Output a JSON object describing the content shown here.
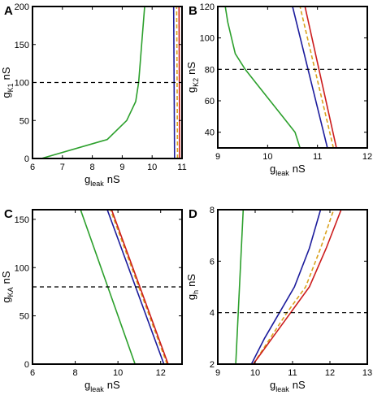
{
  "colors": {
    "green": "#2ca02c",
    "blue": "#1c1c9c",
    "red": "#cc1c1c",
    "orange": "#d9a21c",
    "reference": "#000000"
  },
  "chart_data": [
    {
      "type": "line",
      "panel_label": "A",
      "xlabel_main": "g",
      "xlabel_sub": "leak",
      "xlabel_unit": "nS",
      "ylabel_main": "g",
      "ylabel_sub": "K1",
      "ylabel_unit": "nS",
      "xlim": [
        6,
        11
      ],
      "ylim": [
        0,
        200
      ],
      "xticks": [
        6,
        7,
        8,
        9,
        10,
        11
      ],
      "yticks": [
        0,
        50,
        100,
        150,
        200
      ],
      "reference_y": 100,
      "series": [
        {
          "color": "green",
          "dashed": false,
          "x": [
            6.3,
            8.5,
            9.15,
            9.45,
            9.55,
            9.6,
            9.65,
            9.75
          ],
          "y": [
            0,
            25,
            50,
            75,
            100,
            125,
            150,
            200
          ]
        },
        {
          "color": "blue",
          "dashed": false,
          "x": [
            10.75,
            10.72
          ],
          "y": [
            0,
            200
          ]
        },
        {
          "color": "orange",
          "dashed": true,
          "x": [
            10.85,
            10.82
          ],
          "y": [
            0,
            200
          ]
        },
        {
          "color": "red",
          "dashed": false,
          "x": [
            10.92,
            10.9
          ],
          "y": [
            0,
            200
          ]
        }
      ]
    },
    {
      "type": "line",
      "panel_label": "B",
      "xlabel_main": "g",
      "xlabel_sub": "leak",
      "xlabel_unit": "nS",
      "ylabel_main": "g",
      "ylabel_sub": "K2",
      "ylabel_unit": "nS",
      "xlim": [
        9,
        12
      ],
      "ylim": [
        30,
        120
      ],
      "xticks": [
        9,
        10,
        11,
        12
      ],
      "yticks": [
        40,
        60,
        80,
        100,
        120
      ],
      "reference_y": 80,
      "series": [
        {
          "color": "green",
          "dashed": false,
          "x": [
            10.65,
            10.55,
            10.3,
            10.05,
            9.8,
            9.55,
            9.35,
            9.2,
            9.15
          ],
          "y": [
            30,
            40,
            50,
            60,
            70,
            80,
            90,
            110,
            120
          ]
        },
        {
          "color": "blue",
          "dashed": false,
          "x": [
            11.2,
            10.5
          ],
          "y": [
            30,
            120
          ]
        },
        {
          "color": "orange",
          "dashed": true,
          "x": [
            11.32,
            10.65
          ],
          "y": [
            30,
            120
          ]
        },
        {
          "color": "red",
          "dashed": false,
          "x": [
            11.38,
            10.75
          ],
          "y": [
            30,
            120
          ]
        }
      ]
    },
    {
      "type": "line",
      "panel_label": "C",
      "xlabel_main": "g",
      "xlabel_sub": "leak",
      "xlabel_unit": "nS",
      "ylabel_main": "g",
      "ylabel_sub": "KA",
      "ylabel_unit": "nS",
      "xlim": [
        6,
        13
      ],
      "ylim": [
        0,
        160
      ],
      "xticks": [
        6,
        8,
        10,
        12
      ],
      "yticks": [
        0,
        50,
        100,
        150
      ],
      "reference_y": 80,
      "series": [
        {
          "color": "green",
          "dashed": false,
          "x": [
            10.8,
            8.25
          ],
          "y": [
            0,
            160
          ]
        },
        {
          "color": "blue",
          "dashed": false,
          "x": [
            12.15,
            9.5
          ],
          "y": [
            0,
            160
          ]
        },
        {
          "color": "orange",
          "dashed": true,
          "x": [
            12.3,
            9.65
          ],
          "y": [
            0,
            160
          ]
        },
        {
          "color": "red",
          "dashed": false,
          "x": [
            12.35,
            9.7
          ],
          "y": [
            0,
            160
          ]
        }
      ]
    },
    {
      "type": "line",
      "panel_label": "D",
      "xlabel_main": "g",
      "xlabel_sub": "leak",
      "xlabel_unit": "nS",
      "ylabel_main": "g",
      "ylabel_sub": "h",
      "ylabel_unit": "nS",
      "xlim": [
        9,
        13
      ],
      "ylim": [
        2,
        8
      ],
      "xticks": [
        9,
        10,
        11,
        12,
        13
      ],
      "yticks": [
        2,
        4,
        6,
        8
      ],
      "reference_y": 4,
      "series": [
        {
          "color": "green",
          "dashed": false,
          "x": [
            9.48,
            9.68
          ],
          "y": [
            2,
            8
          ]
        },
        {
          "color": "blue",
          "dashed": false,
          "x": [
            9.9,
            10.25,
            10.65,
            11.05,
            11.45,
            11.75
          ],
          "y": [
            2,
            3,
            4,
            5,
            6.5,
            8
          ]
        },
        {
          "color": "orange",
          "dashed": true,
          "x": [
            9.95,
            10.4,
            10.85,
            11.35,
            11.75,
            12.1
          ],
          "y": [
            2,
            3,
            4,
            5,
            6.5,
            8
          ]
        },
        {
          "color": "red",
          "dashed": false,
          "x": [
            9.95,
            10.45,
            10.95,
            11.45,
            11.9,
            12.3
          ],
          "y": [
            2,
            3,
            4,
            5,
            6.5,
            8
          ]
        }
      ]
    }
  ]
}
